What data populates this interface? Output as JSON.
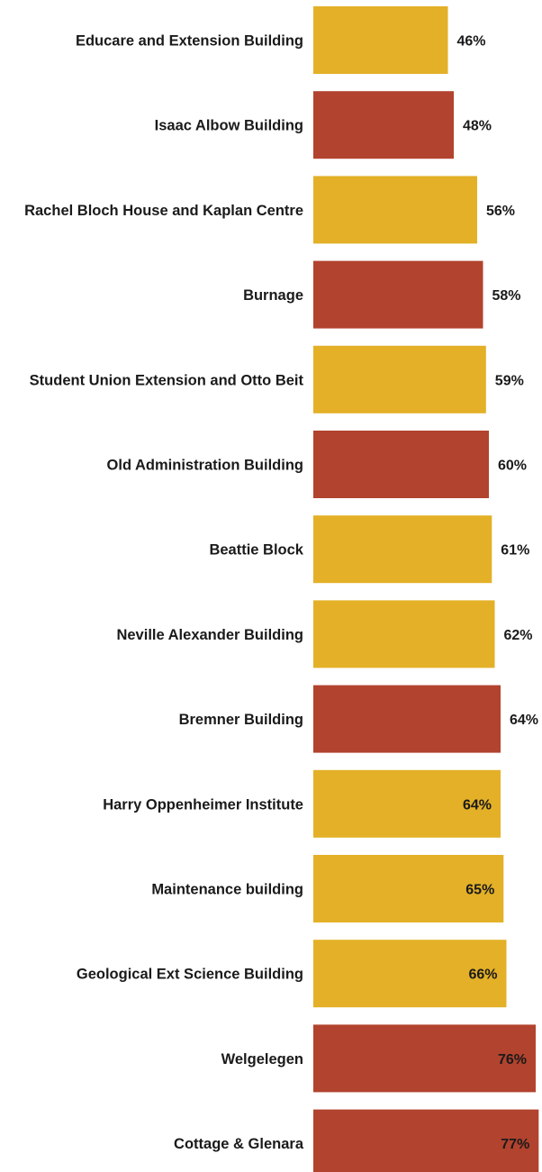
{
  "chart_data": {
    "type": "bar",
    "orientation": "horizontal",
    "title": "",
    "xlabel": "",
    "ylabel": "",
    "xlim": [
      0,
      100
    ],
    "grid": false,
    "legend": "none",
    "colors": {
      "yellow": "#E3B027",
      "red": "#B2432E"
    },
    "categories": [
      "Educare and Extension Building",
      "Isaac Albow Building",
      "Rachel Bloch House and Kaplan Centre",
      "Burnage",
      "Student Union Extension and Otto Beit",
      "Old Administration Building",
      "Beattie Block",
      "Neville Alexander Building",
      "Bremner Building",
      "Harry Oppenheimer Institute",
      "Maintenance building",
      "Geological Ext Science Building",
      "Welgelegen",
      "Cottage & Glenara"
    ],
    "values": [
      46,
      48,
      56,
      58,
      59,
      60,
      61,
      62,
      64,
      64,
      65,
      66,
      76,
      77
    ],
    "value_labels": [
      "46%",
      "48%",
      "56%",
      "58%",
      "59%",
      "60%",
      "61%",
      "62%",
      "64%",
      "64%",
      "65%",
      "66%",
      "76%",
      "77%"
    ],
    "bar_colors": [
      "yellow",
      "red",
      "yellow",
      "red",
      "yellow",
      "red",
      "yellow",
      "yellow",
      "red",
      "yellow",
      "yellow",
      "yellow",
      "red",
      "red"
    ]
  }
}
